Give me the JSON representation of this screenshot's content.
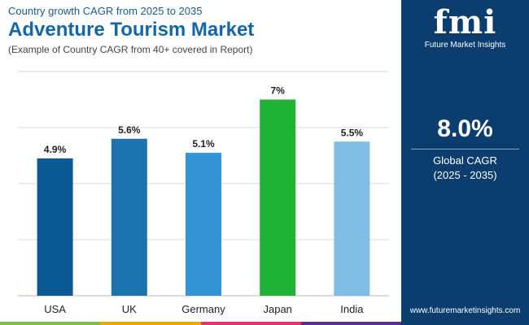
{
  "header": {
    "top_line": "Country growth CAGR from 2025 to 2035",
    "title": "Adventure Tourism Market",
    "note": "(Example of Country CAGR from 40+ covered in Report)"
  },
  "chart_data": {
    "type": "bar",
    "categories": [
      "USA",
      "UK",
      "Germany",
      "Japan",
      "India"
    ],
    "values": [
      4.9,
      5.6,
      5.1,
      7,
      5.5
    ],
    "value_labels": [
      "4.9%",
      "5.6%",
      "5.1%",
      "7%",
      "5.5%"
    ],
    "bar_colors": [
      "#0b5a93",
      "#1c73ae",
      "#3495d6",
      "#1fb234",
      "#7fbde4"
    ],
    "grid": true,
    "ylim": [
      0,
      8
    ]
  },
  "panel": {
    "logo_mark": "fmi",
    "logo_text": "Future Market Insights",
    "big_value": "8.0%",
    "label_line1": "Global CAGR",
    "label_line2": "(2025 - 2035)",
    "website": "www.futuremarketinsights.com",
    "background": "#0b3d6e"
  },
  "bottom_strip_colors": [
    "#7ac143",
    "#f0a500",
    "#e2336b",
    "#5c2d91"
  ]
}
